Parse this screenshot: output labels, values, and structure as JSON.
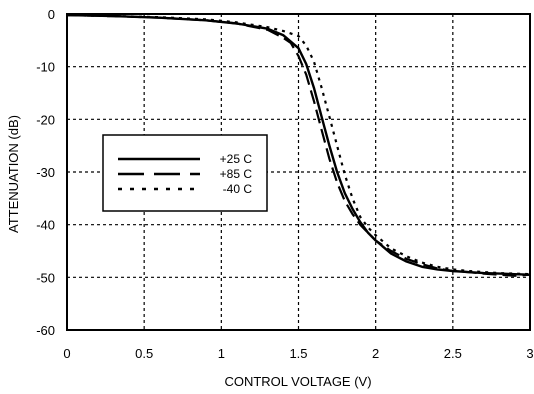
{
  "chart_data": {
    "type": "line",
    "title": "",
    "xlabel": "CONTROL VOLTAGE  (V)",
    "ylabel": "ATTENUATION (dB)",
    "xlim": [
      0,
      3
    ],
    "ylim": [
      -60,
      0
    ],
    "x_ticks": [
      0,
      0.5,
      1,
      1.5,
      2,
      2.5,
      3
    ],
    "x_tick_labels": [
      "0",
      "0.5",
      "1",
      "1.5",
      "2",
      "2.5",
      "3"
    ],
    "y_ticks": [
      0,
      -10,
      -20,
      -30,
      -40,
      -50,
      -60
    ],
    "y_tick_labels": [
      "0",
      "-10",
      "-20",
      "-30",
      "-40",
      "-50",
      "-60"
    ],
    "grid": true,
    "legend_position": "left-middle",
    "series": [
      {
        "name": "+25 C",
        "style": "solid",
        "x": [
          0,
          0.3,
          0.6,
          0.9,
          1.1,
          1.3,
          1.4,
          1.5,
          1.55,
          1.6,
          1.65,
          1.7,
          1.75,
          1.8,
          1.85,
          1.9,
          1.95,
          2.0,
          2.1,
          2.2,
          2.3,
          2.4,
          2.5,
          2.6,
          2.7,
          2.8,
          2.9,
          3.0
        ],
        "y": [
          -0.2,
          -0.4,
          -0.7,
          -1.2,
          -1.8,
          -2.8,
          -4,
          -6.5,
          -9.5,
          -14,
          -19.5,
          -25,
          -30,
          -34,
          -37,
          -39.5,
          -41.5,
          -43,
          -45.5,
          -47,
          -48,
          -48.5,
          -48.8,
          -49,
          -49.2,
          -49.3,
          -49.4,
          -49.5
        ]
      },
      {
        "name": "+85 C",
        "style": "dashed",
        "x": [
          0,
          0.3,
          0.6,
          0.9,
          1.1,
          1.3,
          1.4,
          1.45,
          1.5,
          1.55,
          1.6,
          1.65,
          1.7,
          1.75,
          1.8,
          1.85,
          1.9,
          1.95,
          2.0,
          2.1,
          2.2,
          2.3,
          2.4,
          2.5,
          2.6,
          2.7,
          2.8,
          2.9,
          3.0
        ],
        "y": [
          -0.2,
          -0.4,
          -0.7,
          -1.2,
          -1.8,
          -3,
          -4.5,
          -5.5,
          -8,
          -11.5,
          -16.5,
          -22,
          -27.5,
          -32,
          -35.5,
          -38,
          -40,
          -41.5,
          -43,
          -45,
          -46.5,
          -47.5,
          -48.3,
          -48.8,
          -49,
          -49.3,
          -49.5,
          -49.7,
          -49.5
        ]
      },
      {
        "name": "-40 C",
        "style": "dotted",
        "x": [
          0,
          0.3,
          0.6,
          0.9,
          1.1,
          1.3,
          1.4,
          1.5,
          1.55,
          1.6,
          1.65,
          1.7,
          1.75,
          1.8,
          1.85,
          1.9,
          1.95,
          2.0,
          2.1,
          2.2,
          2.3,
          2.4,
          2.5,
          2.6,
          2.7,
          2.8,
          2.9,
          3.0
        ],
        "y": [
          -0.2,
          -0.4,
          -0.6,
          -1,
          -1.6,
          -2.5,
          -3.2,
          -4.2,
          -6,
          -9,
          -14,
          -19.5,
          -25,
          -30.5,
          -35,
          -38.5,
          -40.5,
          -42,
          -44.5,
          -46,
          -47.2,
          -48,
          -48.5,
          -48.8,
          -49,
          -49.2,
          -49.3,
          -49.4
        ]
      }
    ]
  }
}
